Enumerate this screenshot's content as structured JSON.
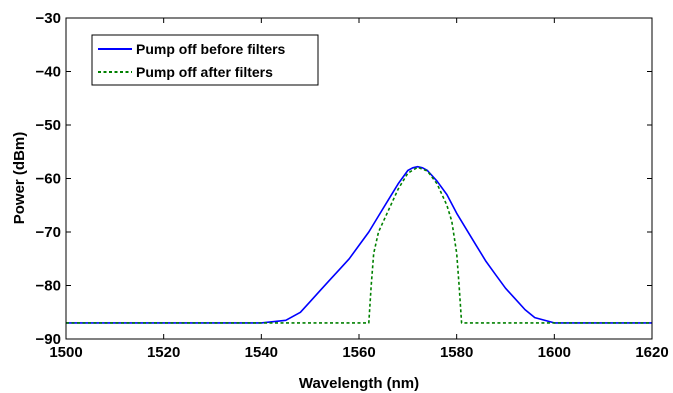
{
  "chart_data": {
    "type": "line",
    "xlabel": "Wavelength (nm)",
    "ylabel": "Power (dBm)",
    "xlim": [
      1500,
      1620
    ],
    "ylim": [
      -90,
      -30
    ],
    "xticks": [
      1500,
      1520,
      1540,
      1560,
      1580,
      1600,
      1620
    ],
    "yticks": [
      -30,
      -40,
      -50,
      -60,
      -70,
      -80,
      -90
    ],
    "grid": false,
    "legend_position": "top-left",
    "series": [
      {
        "name": "Pump off before filters",
        "color": "#0000ff",
        "style": "solid",
        "x": [
          1500,
          1510,
          1520,
          1530,
          1540,
          1545,
          1548,
          1550,
          1552,
          1554,
          1556,
          1558,
          1560,
          1562,
          1564,
          1566,
          1568,
          1570,
          1571,
          1572,
          1573,
          1574,
          1576,
          1578,
          1580,
          1582,
          1584,
          1586,
          1588,
          1590,
          1592,
          1594,
          1596,
          1600,
          1610,
          1620
        ],
        "y": [
          -87,
          -87,
          -87,
          -87,
          -87,
          -86.5,
          -85,
          -83,
          -81,
          -79,
          -77,
          -75,
          -72.5,
          -70,
          -67,
          -64,
          -61,
          -58.5,
          -58,
          -57.8,
          -58,
          -58.5,
          -60.5,
          -63,
          -66.5,
          -69.5,
          -72.5,
          -75.5,
          -78,
          -80.5,
          -82.5,
          -84.5,
          -86,
          -87,
          -87,
          -87
        ]
      },
      {
        "name": "Pump off after filters",
        "color": "#008000",
        "style": "dashed",
        "x": [
          1500,
          1510,
          1520,
          1530,
          1540,
          1550,
          1560,
          1562,
          1562.5,
          1563,
          1564,
          1566,
          1568,
          1570,
          1572,
          1574,
          1576,
          1578,
          1579,
          1580,
          1580.5,
          1581,
          1590,
          1600,
          1610,
          1620
        ],
        "y": [
          -87,
          -87,
          -87,
          -87,
          -87,
          -87,
          -87,
          -87,
          -80,
          -74,
          -70,
          -66,
          -62,
          -59,
          -57.9,
          -58.6,
          -61,
          -65,
          -68,
          -74,
          -80,
          -87,
          -87,
          -87,
          -87,
          -87
        ]
      }
    ]
  }
}
